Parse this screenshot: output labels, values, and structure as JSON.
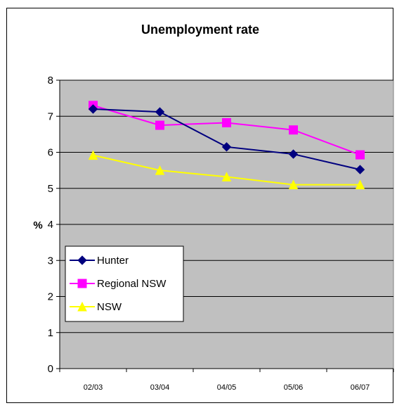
{
  "chart_data": {
    "type": "line",
    "title": "Unemployment rate",
    "xlabel": "",
    "ylabel": "%",
    "categories": [
      "02/03",
      "03/04",
      "04/05",
      "05/06",
      "06/07"
    ],
    "ylim": [
      0,
      8
    ],
    "yticks": [
      "0",
      "1",
      "2",
      "3",
      "4",
      "5",
      "6",
      "7",
      "8"
    ],
    "grid": true,
    "legend_position": "lower-left",
    "series": [
      {
        "name": "Hunter",
        "values": [
          7.2,
          7.12,
          6.15,
          5.95,
          5.52
        ],
        "color": "#00007f",
        "marker": "diamond"
      },
      {
        "name": "Regional NSW",
        "values": [
          7.3,
          6.75,
          6.82,
          6.62,
          5.93
        ],
        "color": "#ff00ff",
        "marker": "square"
      },
      {
        "name": "NSW",
        "values": [
          5.92,
          5.5,
          5.32,
          5.1,
          5.1
        ],
        "color": "#ffff00",
        "marker": "triangle"
      }
    ],
    "plot_background": "#c0c0c0"
  }
}
